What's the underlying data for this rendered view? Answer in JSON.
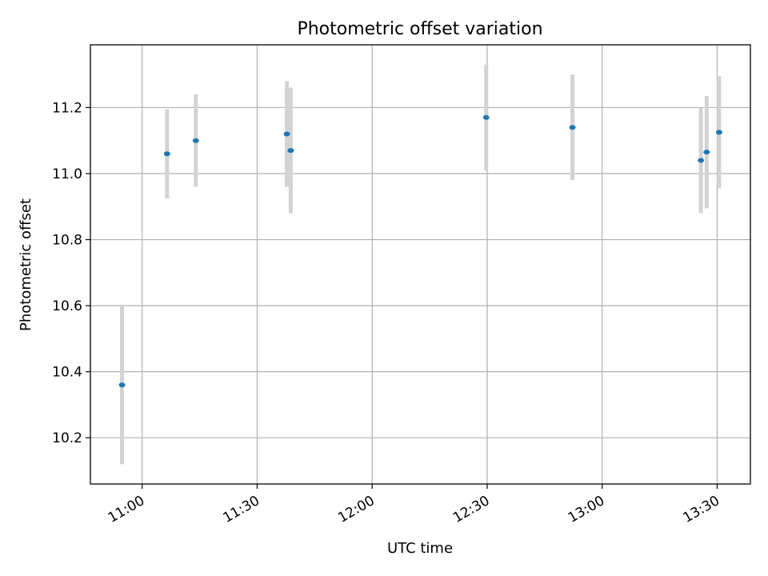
{
  "chart_data": {
    "type": "scatter",
    "title": "Photometric offset variation",
    "xlabel": "UTC time",
    "ylabel": "Photometric offset",
    "x_ticks": [
      "11:00",
      "11:30",
      "12:00",
      "12:30",
      "13:00",
      "13:30"
    ],
    "y_ticks": [
      "10.2",
      "10.4",
      "10.6",
      "10.8",
      "11.0",
      "11.2"
    ],
    "xlim": [
      "10:46:30",
      "13:38:40"
    ],
    "ylim": [
      10.06,
      11.39
    ],
    "grid": true,
    "series": [
      {
        "points": [
          {
            "x": "10:54:45",
            "y": 10.36,
            "err": 0.24
          },
          {
            "x": "11:06:30",
            "y": 11.06,
            "err": 0.135
          },
          {
            "x": "11:14:00",
            "y": 11.1,
            "err": 0.14
          },
          {
            "x": "11:37:45",
            "y": 11.12,
            "err": 0.16
          },
          {
            "x": "11:38:45",
            "y": 11.07,
            "err": 0.19
          },
          {
            "x": "12:29:45",
            "y": 11.17,
            "err": 0.16
          },
          {
            "x": "12:52:15",
            "y": 11.14,
            "err": 0.16
          },
          {
            "x": "13:25:45",
            "y": 11.04,
            "err": 0.16
          },
          {
            "x": "13:27:15",
            "y": 11.065,
            "err": 0.17
          },
          {
            "x": "13:30:30",
            "y": 11.125,
            "err": 0.17
          }
        ]
      }
    ]
  },
  "colors": {
    "point": "#1f77b4",
    "errorbar": "#d3d3d3",
    "grid": "#b0b0b0",
    "axes": "#000000"
  }
}
